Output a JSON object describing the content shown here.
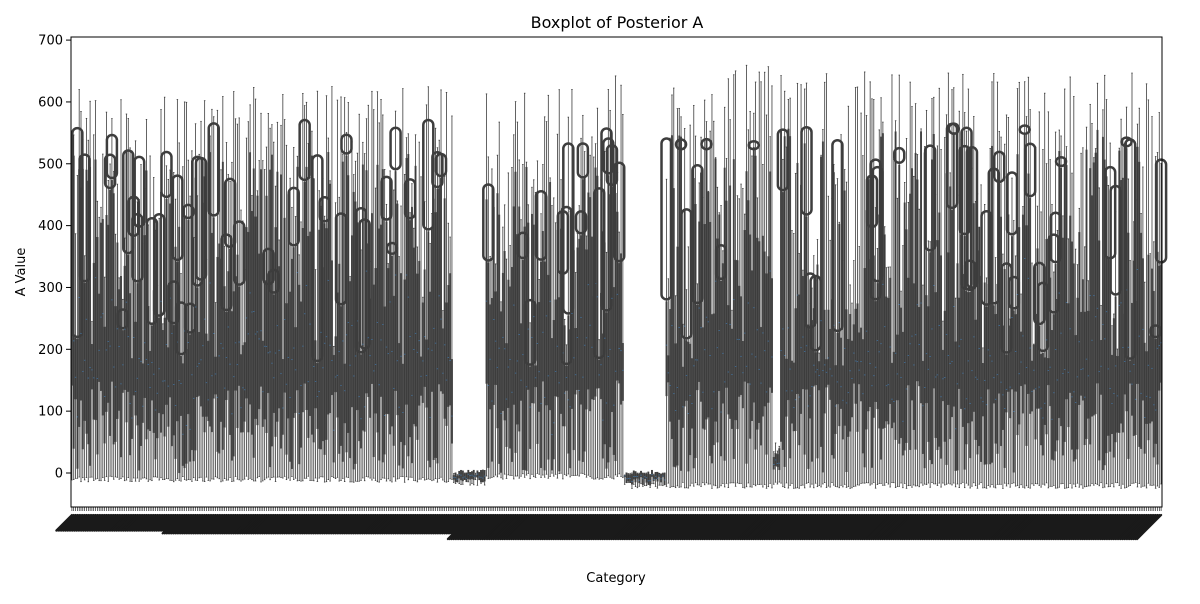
{
  "chart_data": {
    "type": "boxplot",
    "title": "Boxplot of Posterior A",
    "xlabel": "Category",
    "ylabel": "A Value",
    "ylim": [
      -55,
      705
    ],
    "yticks": [
      0,
      100,
      200,
      300,
      400,
      500,
      600,
      700
    ],
    "category_count": 600,
    "x_tick_labels_legible": false,
    "x_tick_label_rotation_deg": 45,
    "grid": false,
    "legend": "none",
    "colors": {
      "box_fill": "#3d3d3d",
      "median": "#3f6f9c",
      "whisker": "#3d3d3d",
      "axis": "#000000"
    },
    "category_groups": [
      {
        "start": 0,
        "end": 209,
        "q1_range": [
          0,
          150
        ],
        "q3_range": [
          170,
          520
        ],
        "whisker_low": -15,
        "whisker_high_max": 625,
        "outlier_high_max": 565
      },
      {
        "start": 210,
        "end": 227,
        "q1_range": [
          -15,
          -5
        ],
        "q3_range": [
          -5,
          5
        ],
        "whisker_low": -20,
        "whisker_high_max": 0,
        "outlier_high_max": 0
      },
      {
        "start": 228,
        "end": 303,
        "q1_range": [
          0,
          150
        ],
        "q3_range": [
          170,
          500
        ],
        "whisker_low": -10,
        "whisker_high_max": 645,
        "outlier_high_max": 555
      },
      {
        "start": 304,
        "end": 326,
        "q1_range": [
          -20,
          -5
        ],
        "q3_range": [
          -5,
          5
        ],
        "whisker_low": -25,
        "whisker_high_max": 0,
        "outlier_high_max": 0
      },
      {
        "start": 327,
        "end": 385,
        "q1_range": [
          0,
          150
        ],
        "q3_range": [
          170,
          560
        ],
        "whisker_low": -25,
        "whisker_high_max": 665,
        "outlier_high_max": 535
      },
      {
        "start": 386,
        "end": 389,
        "q1_range": [
          0,
          15
        ],
        "q3_range": [
          20,
          45
        ],
        "whisker_low": -20,
        "whisker_high_max": 50,
        "outlier_high_max": 0
      },
      {
        "start": 390,
        "end": 599,
        "q1_range": [
          0,
          150
        ],
        "q3_range": [
          170,
          560
        ],
        "whisker_low": -25,
        "whisker_high_max": 650,
        "outlier_high_max": 560
      }
    ]
  }
}
